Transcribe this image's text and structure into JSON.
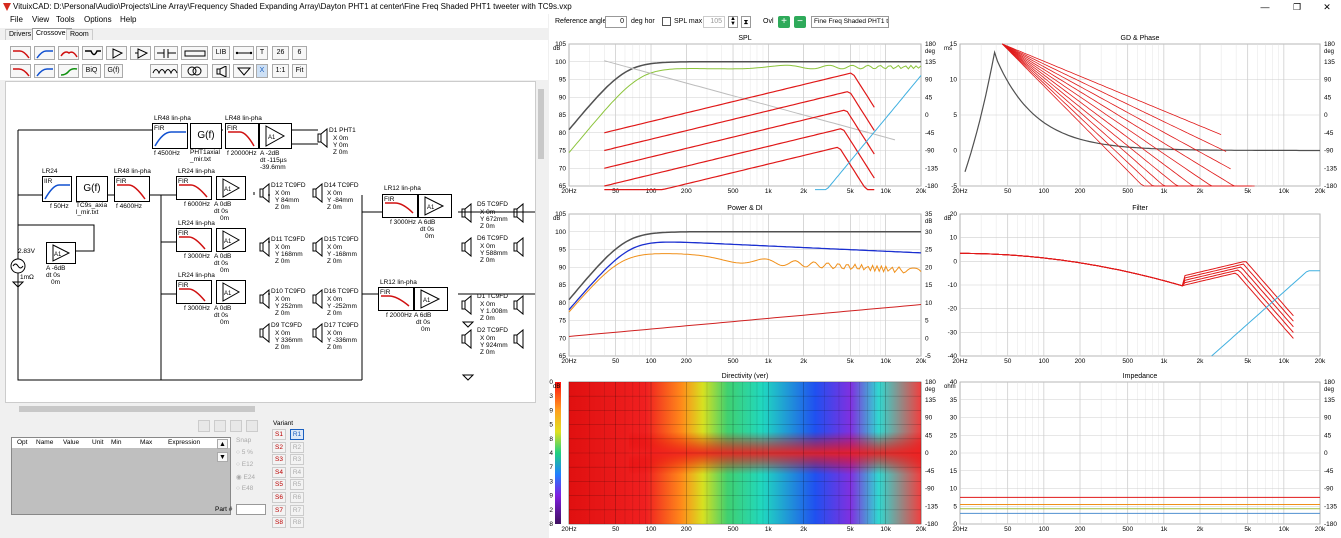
{
  "window": {
    "title": "VituixCAD: D:\\Personal\\Audio\\Projects\\Line Array\\Frequency Shaded Expanding Array\\Dayton PHT1 at center\\Fine Freq Shaded PHT1 tweeter with TC9s.vxp",
    "minimize": "—",
    "maximize": "❐",
    "close": "✕"
  },
  "menu": [
    "File",
    "View",
    "Tools",
    "Options",
    "Help"
  ],
  "tabs": [
    "Drivers",
    "Crossover",
    "Room"
  ],
  "toolbar": {
    "lib_label": "LIB",
    "t_label": "T",
    "n26": "26",
    "n6": "6",
    "biq": "BiQ",
    "gf": "G(f)",
    "x": "X",
    "ratio": "1:1",
    "fit": "Fit"
  },
  "schematic": {
    "source": {
      "v": "2.83V",
      "r": "1mΩ"
    },
    "src_amp": {
      "a": "A -6dB",
      "dt": "dt 0s",
      "z": "0m"
    },
    "lr24_top": {
      "name": "LR24",
      "type": "IIR",
      "f": "f 50Hz"
    },
    "gf_tc9": {
      "label": "G(f)",
      "file": "TC9s_axia l_mir.txt"
    },
    "lr48_4600b": {
      "name": "LR48 lin-pha",
      "type": "FIR",
      "f": "f 4600Hz"
    },
    "lr48_4500": {
      "name": "LR48 lin-pha",
      "type": "FIR",
      "f": "f 4500Hz"
    },
    "gf_pht": {
      "label": "G(f)",
      "file": "PHT1axial _mir.txt"
    },
    "lr48_20k": {
      "name": "LR48 lin-pha",
      "type": "FIR",
      "f": "f 20000Hz"
    },
    "amp_pht": {
      "a": "A -2dB",
      "dt": "dt -115µs",
      "z": "-39.6mm"
    },
    "d1_pht": {
      "name": "D1 PHT1",
      "x": "X 0m",
      "y": "Y 0m",
      "z": "Z 0m"
    },
    "lr24_6000": {
      "name": "LR24 lin-pha",
      "type": "FIR",
      "f": "f 6000Hz",
      "a": "A 0dB",
      "dt": "dt 0s",
      "z": "0m"
    },
    "lr24_3000a": {
      "name": "LR24 lin-pha",
      "type": "FIR",
      "f": "f 3000Hz",
      "a": "A 0dB",
      "dt": "dt 0s",
      "z": "0m"
    },
    "lr24_3000b": {
      "name": "LR24 lin-pha",
      "type": "FIR",
      "f": "f 3000Hz",
      "a": "A 0dB",
      "dt": "dt 0s",
      "z": "0m"
    },
    "d12": {
      "name": "D12 TC9FD",
      "x": "X 0m",
      "y": "Y 84mm",
      "z": "Z 0m"
    },
    "d14": {
      "name": "D14 TC9FD",
      "x": "X 0m",
      "y": "Y -84mm",
      "z": "Z 0m"
    },
    "d11": {
      "name": "D11 TC9FD",
      "x": "X 0m",
      "y": "Y 168mm",
      "z": "Z 0m"
    },
    "d15": {
      "name": "D15 TC9FD",
      "x": "X 0m",
      "y": "Y -168mm",
      "z": "Z 0m"
    },
    "d10": {
      "name": "D10 TC9FD",
      "x": "X 0m",
      "y": "Y 252mm",
      "z": "Z 0m"
    },
    "d16": {
      "name": "D16 TC9FD",
      "x": "X 0m",
      "y": "Y -252mm",
      "z": "Z 0m"
    },
    "d9": {
      "name": "D9 TC9FD",
      "x": "X 0m",
      "y": "Y 336mm",
      "z": "Z 0m"
    },
    "d17": {
      "name": "D17 TC9FD",
      "x": "X 0m",
      "y": "Y -336mm",
      "z": "Z 0m"
    },
    "lr12_3000": {
      "name": "LR12 lin-pha",
      "type": "FIR",
      "f": "f 3000Hz",
      "a": "A 6dB",
      "dt": "dt 0s",
      "z": "0m"
    },
    "d5": {
      "name": "D5 TC9FD",
      "x": "X 0m",
      "y": "Y 672mm",
      "z": "Z 0m"
    },
    "d6": {
      "name": "D6 TC9FD",
      "x": "X 0m",
      "y": "Y 588mm",
      "z": "Z 0m"
    },
    "lr12_2000": {
      "name": "LR12 lin-pha",
      "type": "FIR",
      "f": "f 2000Hz",
      "a": "A 6dB",
      "dt": "dt 0s",
      "z": "0m"
    },
    "d1_tc9": {
      "name": "D1 TC9FD",
      "x": "X 0m",
      "y": "Y 1.008m",
      "z": "Z 0m"
    },
    "d2_tc9": {
      "name": "D2 TC9FD",
      "x": "X 0m",
      "y": "Y 924mm",
      "z": "Z 0m"
    }
  },
  "optimizer": {
    "columns": [
      "Opt",
      "Name",
      "Value",
      "Unit",
      "Min",
      "Max",
      "Expression"
    ],
    "snap_label": "Snap",
    "snap_options": [
      "5 %",
      "E12",
      "E24",
      "E48"
    ],
    "part_label": "Part #",
    "variant_label": "Variant",
    "variants": [
      "S1",
      "S2",
      "S3",
      "S4",
      "S5",
      "S6",
      "S7",
      "S8"
    ],
    "refs": [
      "R1",
      "R2",
      "R3",
      "R4",
      "R5",
      "R6",
      "R7",
      "R8"
    ]
  },
  "graph_toolbar": {
    "ref_angle_label": "Reference angle",
    "ref_angle_value": "0",
    "deg_hor": "deg hor",
    "spl_max_label": "SPL max",
    "spl_max_value": "105",
    "ovl_label": "Ovl",
    "overlay_value": "Fine Freq Shaded PHT1 tw"
  },
  "graphs": {
    "spl": {
      "title": "SPL",
      "yunit": "dB",
      "y2unit": "deg",
      "yticks": [
        "105",
        "100",
        "95",
        "90",
        "85",
        "80",
        "75",
        "70",
        "65"
      ],
      "y2ticks": [
        "180",
        "135",
        "90",
        "45",
        "0",
        "-45",
        "-90",
        "-135",
        "-180"
      ]
    },
    "gd": {
      "title": "GD & Phase",
      "yunit": "ms",
      "y2unit": "deg",
      "yticks": [
        "15",
        "10",
        "5",
        "0",
        "-5"
      ],
      "y2ticks": [
        "180",
        "135",
        "90",
        "45",
        "0",
        "-45",
        "-90",
        "-135",
        "-180"
      ]
    },
    "power": {
      "title": "Power & DI",
      "yunit": "dB",
      "y2unit": "dB",
      "yticks": [
        "105",
        "100",
        "95",
        "90",
        "85",
        "80",
        "75",
        "70",
        "65"
      ],
      "y2ticks": [
        "35",
        "30",
        "25",
        "20",
        "15",
        "10",
        "5",
        "0",
        "-5"
      ]
    },
    "filter": {
      "title": "Filter",
      "yunit": "dB",
      "yticks": [
        "20",
        "10",
        "0",
        "-10",
        "-20",
        "-30",
        "-40"
      ]
    },
    "directivity": {
      "title": "Directivity (ver)",
      "yunit": "dB",
      "y2unit": "deg",
      "yticks": [
        "0",
        "-3",
        "-9",
        "-15",
        "-18",
        "-24",
        "-27",
        "-33",
        "-39",
        "-42",
        "-48"
      ],
      "y2ticks": [
        "180",
        "135",
        "90",
        "45",
        "0",
        "-45",
        "-90",
        "-135",
        "-180"
      ]
    },
    "impedance": {
      "title": "Impedance",
      "yunit": "ohm",
      "y2unit": "deg",
      "yticks": [
        "40",
        "35",
        "30",
        "25",
        "20",
        "15",
        "10",
        "5",
        "0"
      ],
      "y2ticks": [
        "180",
        "135",
        "90",
        "45",
        "0",
        "-45",
        "-90",
        "-135",
        "-180"
      ]
    },
    "xticks": [
      "20Hz",
      "50",
      "100",
      "200",
      "500",
      "1k",
      "2k",
      "5k",
      "10k",
      "20k"
    ]
  }
}
